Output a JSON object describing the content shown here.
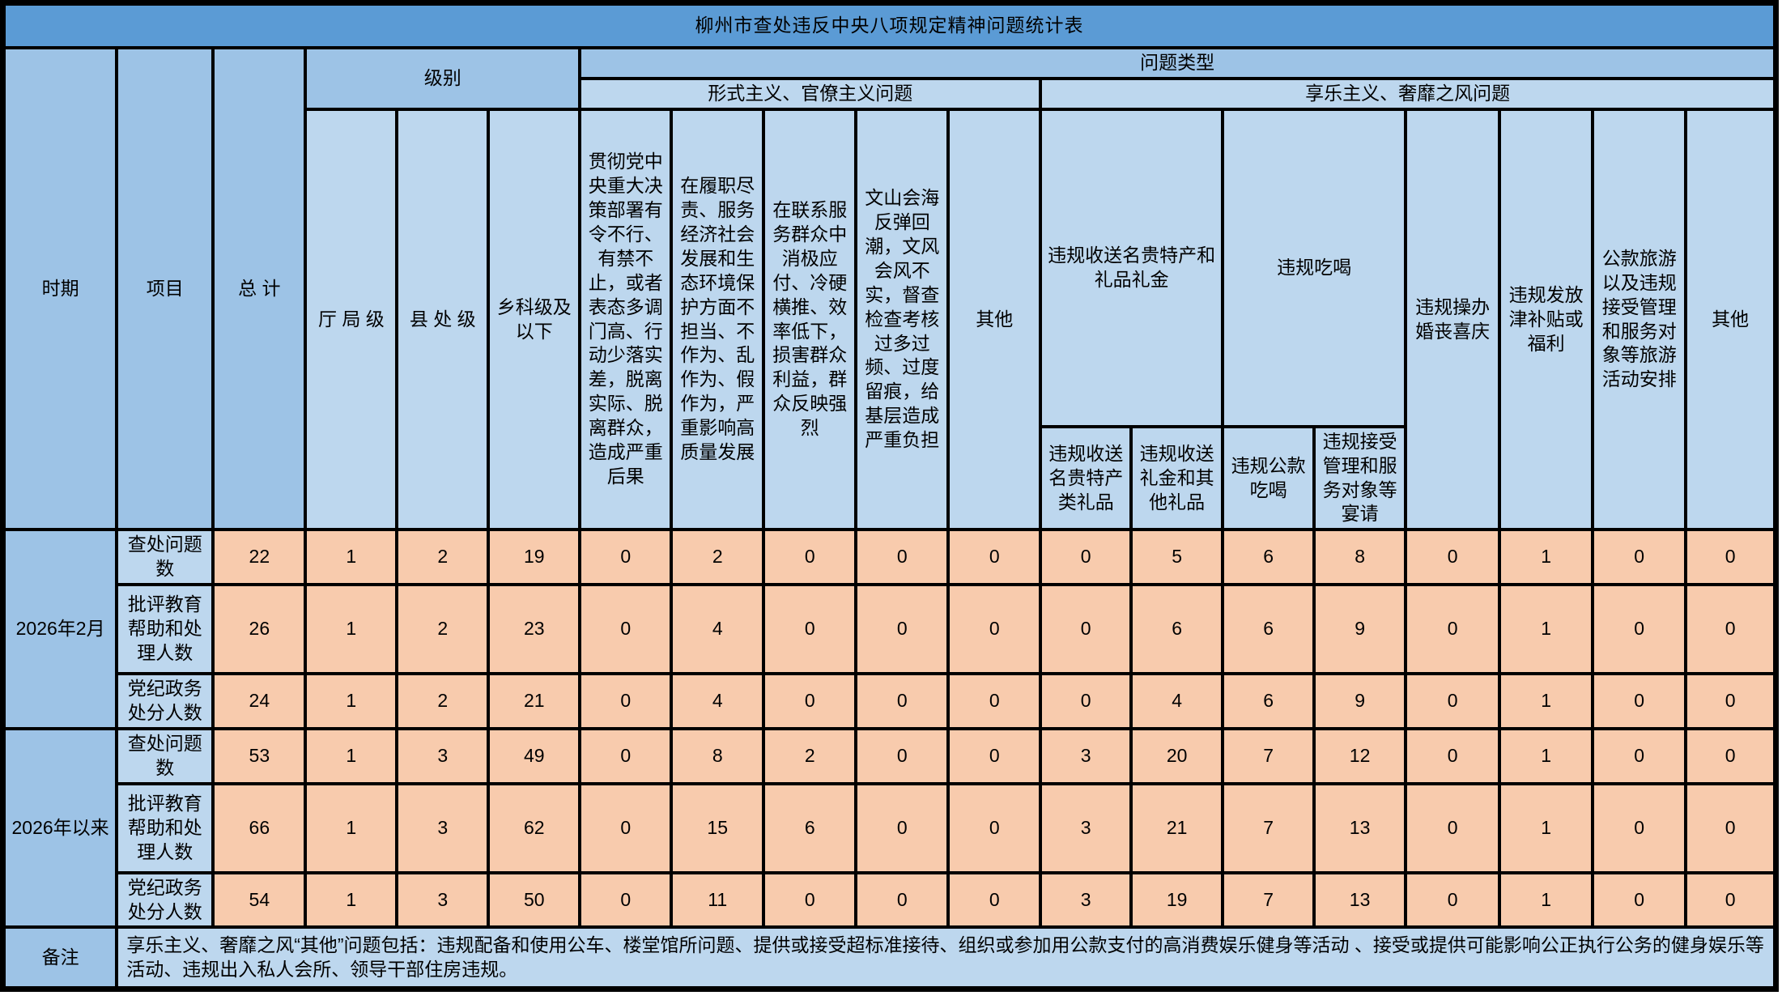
{
  "title": "柳州市查处违反中央八项规定精神问题统计表",
  "colors": {
    "title_bg": "#5B9BD5",
    "title_text": "#FFFFFF",
    "header_dark_blue": "#9DC3E6",
    "header_light_blue": "#BDD7EE",
    "data_cell_orange": "#F8CBAD",
    "border": "#000000"
  },
  "header": {
    "period": "时期",
    "item": "项目",
    "total": "总 计",
    "level_group": "级别",
    "problem_type_group": "问题类型",
    "levels": [
      "厅 局 级",
      "县 处 级",
      "乡科级及以下"
    ],
    "formalism_group": "形式主义、官僚主义问题",
    "formalism_cols": [
      "贯彻党中央重大决策部署有令不行、有禁不止，或者表态多调门高、行动少落实差，脱离实际、脱离群众，造成严重后果",
      "在履职尽责、服务经济社会发展和生态环境保护方面不担当、不作为、乱作为、假作为，严重影响高质量发展",
      "在联系服务群众中消极应付、冷硬横推、效率低下，损害群众利益，群众反映强烈",
      "文山会海反弹回潮，文风会风不实，督查检查考核过多过频、过度留痕，给基层造成严重负担",
      "其他"
    ],
    "hedonism_group": "享乐主义、奢靡之风问题",
    "gifts_group": "违规收送名贵特产和礼品礼金",
    "gifts_cols": [
      "违规收送名贵特产类礼品",
      "违规收送礼金和其他礼品"
    ],
    "dining_group": "违规吃喝",
    "dining_cols": [
      "违规公款吃喝",
      "违规接受管理和服务对象等宴请"
    ],
    "hedonism_tail_cols": [
      "违规操办婚丧喜庆",
      "违规发放津补贴或福利",
      "公款旅游以及违规接受管理和服务对象等旅游活动安排",
      "其他"
    ]
  },
  "periods": [
    {
      "label": "2026年2月",
      "rows": [
        {
          "item": "查处问题数",
          "values": [
            22,
            1,
            2,
            19,
            0,
            2,
            0,
            0,
            0,
            0,
            5,
            6,
            8,
            0,
            1,
            0,
            0
          ]
        },
        {
          "item": "批评教育帮助和处理人数",
          "values": [
            26,
            1,
            2,
            23,
            0,
            4,
            0,
            0,
            0,
            0,
            6,
            6,
            9,
            0,
            1,
            0,
            0
          ]
        },
        {
          "item": "党纪政务处分人数",
          "values": [
            24,
            1,
            2,
            21,
            0,
            4,
            0,
            0,
            0,
            0,
            4,
            6,
            9,
            0,
            1,
            0,
            0
          ]
        }
      ]
    },
    {
      "label": "2026年以来",
      "rows": [
        {
          "item": "查处问题数",
          "values": [
            53,
            1,
            3,
            49,
            0,
            8,
            2,
            0,
            0,
            3,
            20,
            7,
            12,
            0,
            1,
            0,
            0
          ]
        },
        {
          "item": "批评教育帮助和处理人数",
          "values": [
            66,
            1,
            3,
            62,
            0,
            15,
            6,
            0,
            0,
            3,
            21,
            7,
            13,
            0,
            1,
            0,
            0
          ]
        },
        {
          "item": "党纪政务处分人数",
          "values": [
            54,
            1,
            3,
            50,
            0,
            11,
            0,
            0,
            0,
            3,
            19,
            7,
            13,
            0,
            1,
            0,
            0
          ]
        }
      ]
    }
  ],
  "remark": {
    "label": "备注",
    "text": "享乐主义、奢靡之风“其他”问题包括：违规配备和使用公车、楼堂馆所问题、提供或接受超标准接待、组织或参加用公款支付的高消费娱乐健身等活动 、接受或提供可能影响公正执行公务的健身娱乐等活动、违规出入私人会所、领导干部住房违规。"
  }
}
